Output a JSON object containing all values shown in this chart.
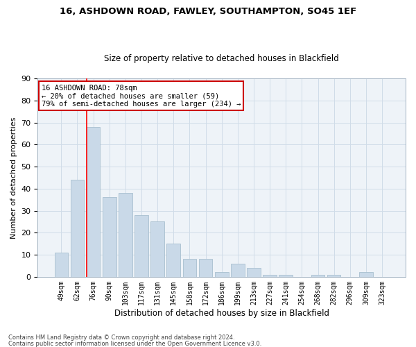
{
  "title1": "16, ASHDOWN ROAD, FAWLEY, SOUTHAMPTON, SO45 1EF",
  "title2": "Size of property relative to detached houses in Blackfield",
  "xlabel": "Distribution of detached houses by size in Blackfield",
  "ylabel": "Number of detached properties",
  "categories": [
    "49sqm",
    "62sqm",
    "76sqm",
    "90sqm",
    "103sqm",
    "117sqm",
    "131sqm",
    "145sqm",
    "158sqm",
    "172sqm",
    "186sqm",
    "199sqm",
    "213sqm",
    "227sqm",
    "241sqm",
    "254sqm",
    "268sqm",
    "282sqm",
    "296sqm",
    "309sqm",
    "323sqm"
  ],
  "values": [
    11,
    44,
    68,
    36,
    38,
    28,
    25,
    15,
    8,
    8,
    2,
    6,
    4,
    1,
    1,
    0,
    1,
    1,
    0,
    2,
    0
  ],
  "bar_color": "#c9d9e8",
  "bar_edge_color": "#a8bfcf",
  "grid_color": "#d0dce8",
  "background_color": "#eef3f8",
  "red_line_x": 1.575,
  "annotation_text": "16 ASHDOWN ROAD: 78sqm\n← 20% of detached houses are smaller (59)\n79% of semi-detached houses are larger (234) →",
  "annotation_box_color": "#ffffff",
  "annotation_box_edge": "#cc0000",
  "footer1": "Contains HM Land Registry data © Crown copyright and database right 2024.",
  "footer2": "Contains public sector information licensed under the Open Government Licence v3.0.",
  "ylim": [
    0,
    90
  ],
  "yticks": [
    0,
    10,
    20,
    30,
    40,
    50,
    60,
    70,
    80,
    90
  ]
}
